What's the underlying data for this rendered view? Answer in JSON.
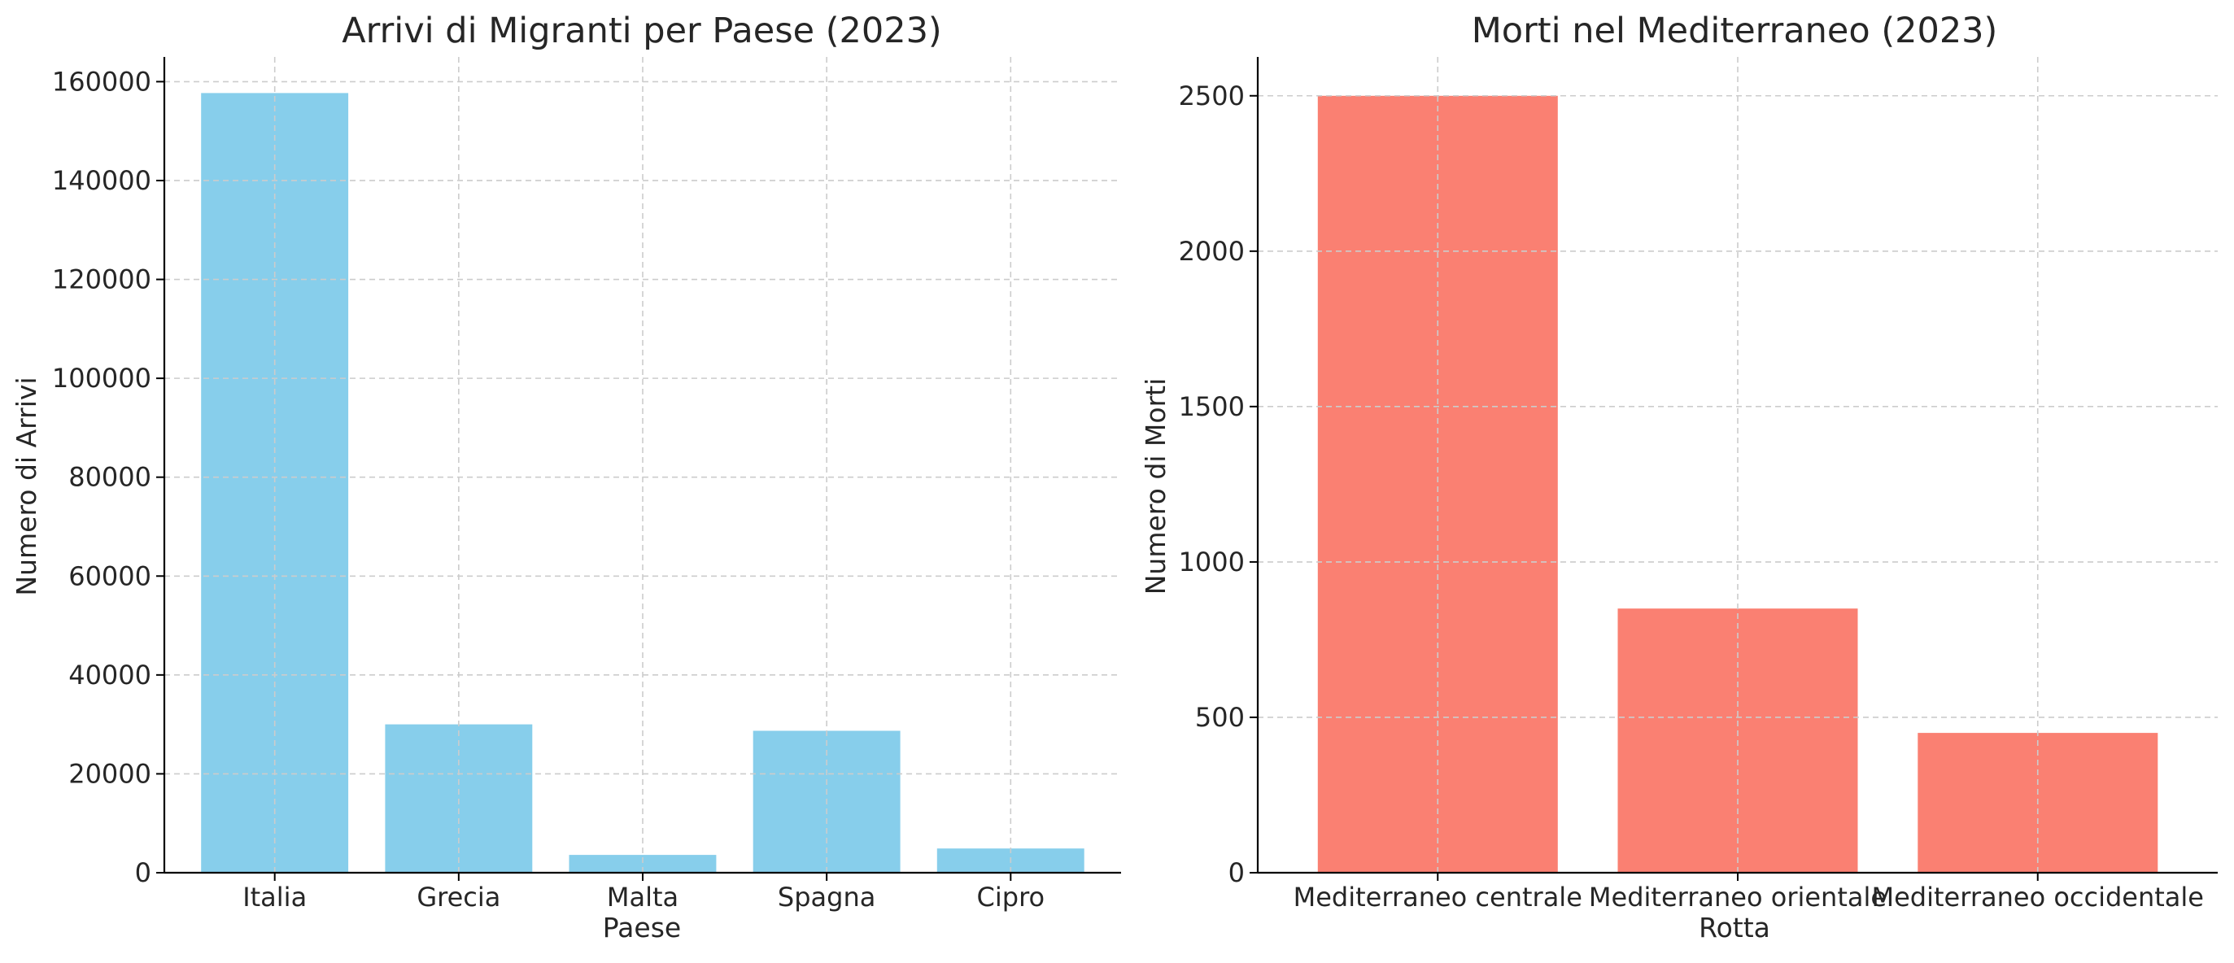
{
  "chart_data": [
    {
      "type": "bar",
      "title": "Arrivi di Migranti per Paese (2023)",
      "xlabel": "Paese",
      "ylabel": "Numero di Arrivi",
      "categories": [
        "Italia",
        "Grecia",
        "Malta",
        "Spagna",
        "Cipro"
      ],
      "values": [
        157700,
        30000,
        3600,
        28700,
        4900
      ],
      "ylim": [
        0,
        165000
      ],
      "yticks": [
        0,
        20000,
        40000,
        60000,
        80000,
        100000,
        120000,
        140000,
        160000
      ],
      "color": "#87CEEB",
      "grid": true
    },
    {
      "type": "bar",
      "title": "Morti nel Mediterraneo (2023)",
      "xlabel": "Rotta",
      "ylabel": "Numero di Morti",
      "categories": [
        "Mediterraneo centrale",
        "Mediterraneo orientale",
        "Mediterraneo occidentale"
      ],
      "values": [
        2500,
        850,
        450
      ],
      "ylim": [
        0,
        2625
      ],
      "yticks": [
        0,
        500,
        1000,
        1500,
        2000,
        2500
      ],
      "color": "#FA8072",
      "grid": true
    }
  ]
}
